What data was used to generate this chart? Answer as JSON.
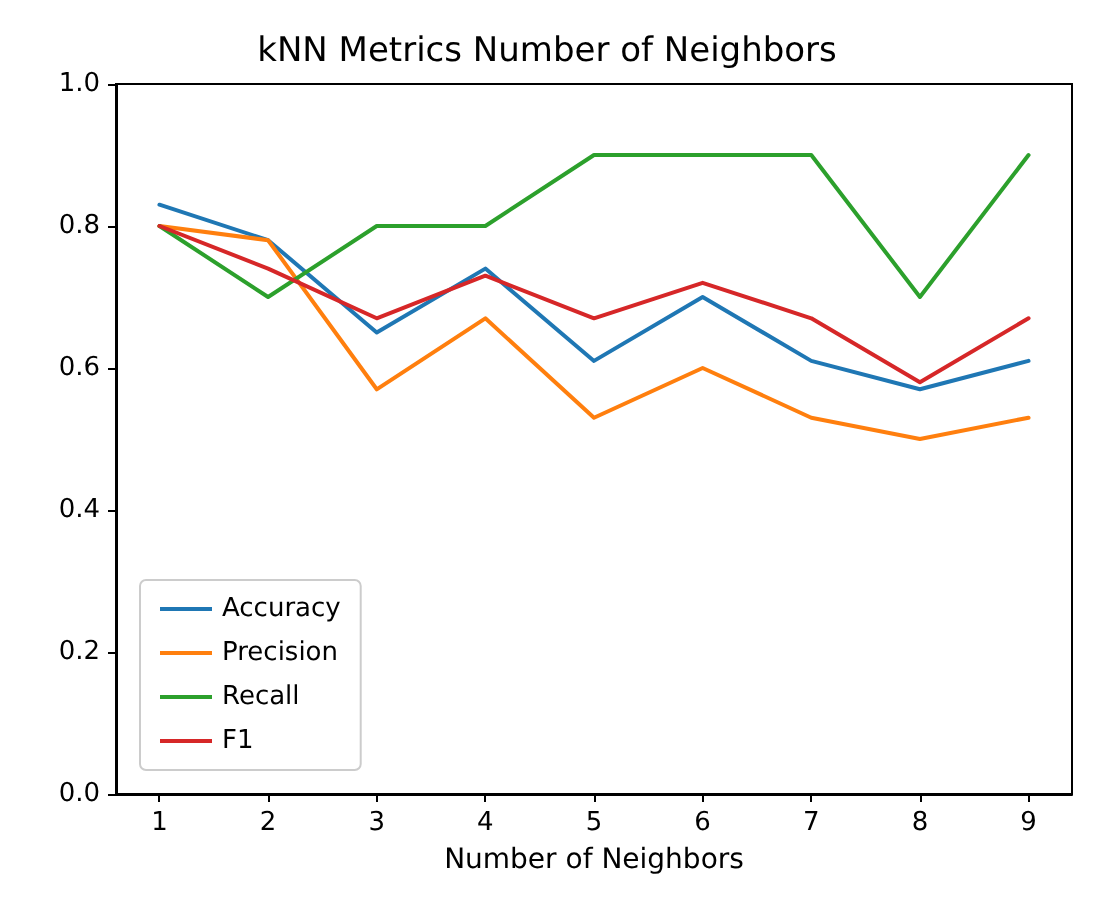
{
  "chart_data": {
    "type": "line",
    "title": "kNN Metrics Number of Neighbors",
    "xlabel": "Number of Neighbors",
    "x": [
      1,
      2,
      3,
      4,
      5,
      6,
      7,
      8,
      9
    ],
    "xlim": [
      0.6,
      9.4
    ],
    "xticks": [
      1,
      2,
      3,
      4,
      5,
      6,
      7,
      8,
      9
    ],
    "ylim": [
      0,
      1
    ],
    "yticks": [
      {
        "value": 0,
        "label": "0.0"
      },
      0.2,
      0.4,
      0.6,
      0.8,
      {
        "value": 1,
        "label": "1.0"
      }
    ],
    "legend": "bottom left",
    "series": [
      {
        "name": "Accuracy",
        "color": "#1f77b4",
        "values": [
          0.83,
          0.78,
          0.65,
          0.74,
          0.61,
          0.7,
          0.61,
          0.57,
          0.61
        ]
      },
      {
        "name": "Precision",
        "color": "#ff7f0e",
        "values": [
          0.8,
          0.78,
          0.57,
          0.67,
          0.53,
          0.6,
          0.53,
          0.5,
          0.53
        ]
      },
      {
        "name": "Recall",
        "color": "#2ca02c",
        "values": [
          0.8,
          0.7,
          0.8,
          0.8,
          0.9,
          0.9,
          0.9,
          0.7,
          0.9
        ]
      },
      {
        "name": "F1",
        "color": "#d62728",
        "values": [
          0.8,
          0.74,
          0.67,
          0.73,
          0.67,
          0.72,
          0.67,
          0.58,
          0.67
        ]
      }
    ]
  }
}
